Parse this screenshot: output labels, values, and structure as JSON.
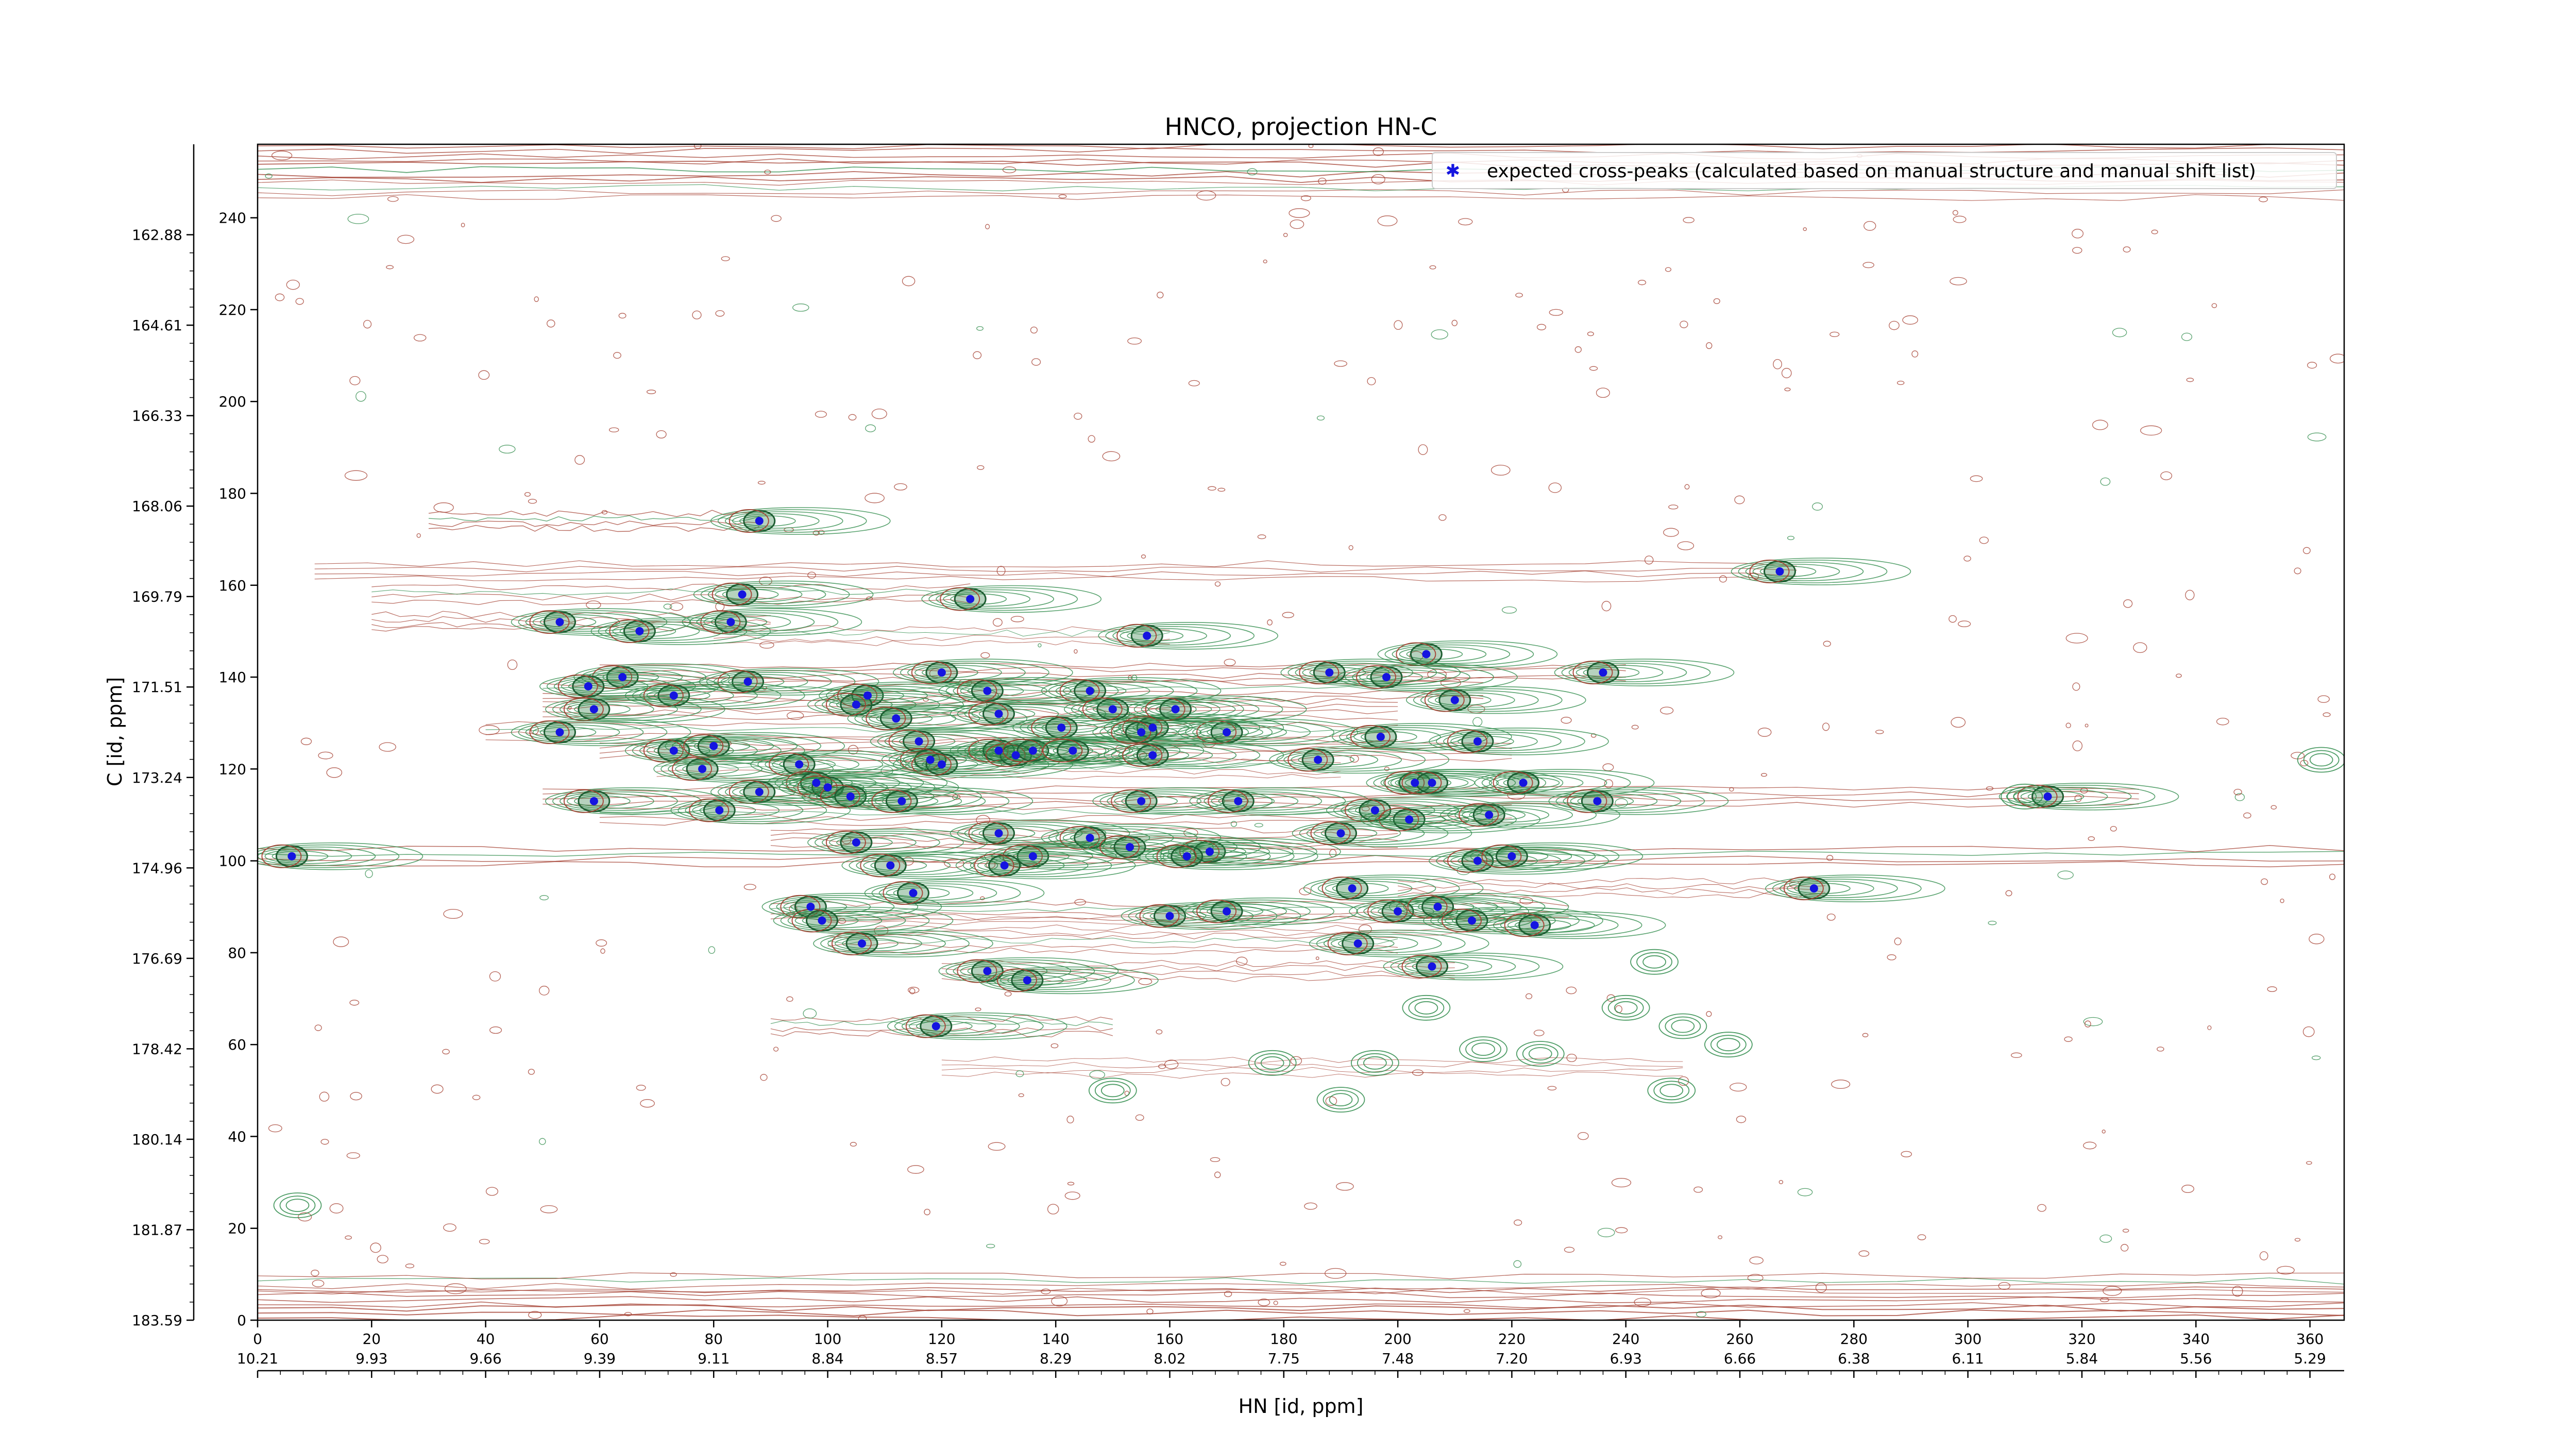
{
  "chart_data": {
    "type": "scatter",
    "title": "HNCO, projection HN-C",
    "xlabel": "HN [id, ppm]",
    "ylabel": "C [id, ppm]",
    "xlim": [
      0,
      366
    ],
    "ylim": [
      0,
      256
    ],
    "x_ticks": [
      "0",
      "20",
      "40",
      "60",
      "80",
      "100",
      "120",
      "140",
      "160",
      "180",
      "200",
      "220",
      "240",
      "260",
      "280",
      "300",
      "320",
      "340",
      "360"
    ],
    "y_ticks": [
      "0",
      "20",
      "40",
      "60",
      "80",
      "100",
      "120",
      "140",
      "160",
      "180",
      "200",
      "220",
      "240"
    ],
    "x_ppm_labels": [
      "10.21",
      "9.93",
      "9.66",
      "9.39",
      "9.11",
      "8.84",
      "8.57",
      "8.29",
      "8.02",
      "7.75",
      "7.48",
      "7.20",
      "6.93",
      "6.66",
      "6.38",
      "6.11",
      "5.84",
      "5.56",
      "5.29"
    ],
    "y_ppm_labels": [
      "183.59",
      "181.87",
      "180.14",
      "178.42",
      "176.69",
      "174.96",
      "173.24",
      "171.51",
      "169.79",
      "168.06",
      "166.33",
      "164.61",
      "162.88"
    ],
    "grid": false,
    "legend": {
      "placement": "top-right",
      "label": "expected cross-peaks (calculated based on manual structure and manual shift list)"
    },
    "colors": {
      "marker": "#1515e0",
      "contour_positive": "#2e8b4a",
      "contour_negative": "#a23b2c"
    },
    "series": [
      {
        "name": "expected cross-peaks (calculated based on manual structure and manual shift list)",
        "points": [
          [
            88,
            174
          ],
          [
            6,
            101
          ],
          [
            85,
            158
          ],
          [
            83,
            152
          ],
          [
            53,
            152
          ],
          [
            67,
            150
          ],
          [
            156,
            149
          ],
          [
            267,
            163
          ],
          [
            125,
            157
          ],
          [
            205,
            145
          ],
          [
            64,
            140
          ],
          [
            86,
            139
          ],
          [
            120,
            141
          ],
          [
            188,
            141
          ],
          [
            198,
            140
          ],
          [
            236,
            141
          ],
          [
            58,
            138
          ],
          [
            73,
            136
          ],
          [
            107,
            136
          ],
          [
            128,
            137
          ],
          [
            146,
            137
          ],
          [
            210,
            135
          ],
          [
            59,
            133
          ],
          [
            105,
            134
          ],
          [
            112,
            131
          ],
          [
            130,
            132
          ],
          [
            141,
            129
          ],
          [
            150,
            133
          ],
          [
            157,
            129
          ],
          [
            170,
            128
          ],
          [
            161,
            133
          ],
          [
            53,
            128
          ],
          [
            73,
            124
          ],
          [
            80,
            125
          ],
          [
            116,
            126
          ],
          [
            118,
            122
          ],
          [
            120,
            121
          ],
          [
            130,
            124
          ],
          [
            133,
            123
          ],
          [
            136,
            124
          ],
          [
            143,
            124
          ],
          [
            155,
            128
          ],
          [
            197,
            127
          ],
          [
            214,
            126
          ],
          [
            78,
            120
          ],
          [
            95,
            121
          ],
          [
            98,
            117
          ],
          [
            100,
            116
          ],
          [
            88,
            115
          ],
          [
            104,
            114
          ],
          [
            113,
            113
          ],
          [
            59,
            113
          ],
          [
            81,
            111
          ],
          [
            157,
            123
          ],
          [
            186,
            122
          ],
          [
            203,
            117
          ],
          [
            206,
            117
          ],
          [
            222,
            117
          ],
          [
            235,
            113
          ],
          [
            155,
            113
          ],
          [
            172,
            113
          ],
          [
            196,
            111
          ],
          [
            202,
            109
          ],
          [
            216,
            110
          ],
          [
            314,
            114
          ],
          [
            130,
            106
          ],
          [
            146,
            105
          ],
          [
            167,
            102
          ],
          [
            190,
            106
          ],
          [
            105,
            104
          ],
          [
            111,
            99
          ],
          [
            136,
            101
          ],
          [
            153,
            103
          ],
          [
            131,
            99
          ],
          [
            214,
            100
          ],
          [
            220,
            101
          ],
          [
            163,
            101
          ],
          [
            97,
            90
          ],
          [
            99,
            87
          ],
          [
            115,
            93
          ],
          [
            160,
            88
          ],
          [
            170,
            89
          ],
          [
            192,
            94
          ],
          [
            200,
            89
          ],
          [
            207,
            90
          ],
          [
            213,
            87
          ],
          [
            224,
            86
          ],
          [
            273,
            94
          ],
          [
            106,
            82
          ],
          [
            193,
            82
          ],
          [
            128,
            76
          ],
          [
            135,
            74
          ],
          [
            206,
            77
          ],
          [
            119,
            64
          ]
        ]
      }
    ]
  }
}
